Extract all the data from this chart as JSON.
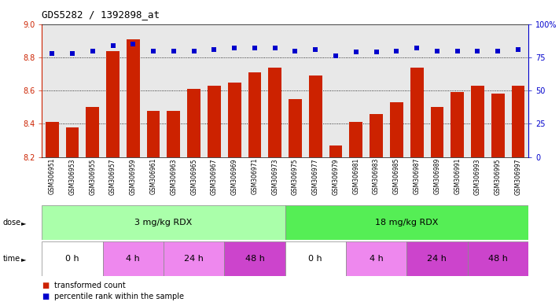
{
  "title": "GDS5282 / 1392898_at",
  "samples": [
    "GSM306951",
    "GSM306953",
    "GSM306955",
    "GSM306957",
    "GSM306959",
    "GSM306961",
    "GSM306963",
    "GSM306965",
    "GSM306967",
    "GSM306969",
    "GSM306971",
    "GSM306973",
    "GSM306975",
    "GSM306977",
    "GSM306979",
    "GSM306981",
    "GSM306983",
    "GSM306985",
    "GSM306987",
    "GSM306989",
    "GSM306991",
    "GSM306993",
    "GSM306995",
    "GSM306997"
  ],
  "bar_values": [
    8.41,
    8.38,
    8.5,
    8.84,
    8.91,
    8.48,
    8.48,
    8.61,
    8.63,
    8.65,
    8.71,
    8.74,
    8.55,
    8.69,
    8.27,
    8.41,
    8.46,
    8.53,
    8.74,
    8.5,
    8.59,
    8.63,
    8.58,
    8.63
  ],
  "percentile_values": [
    78,
    78,
    80,
    84,
    85,
    80,
    80,
    80,
    81,
    82,
    82,
    82,
    80,
    81,
    76,
    79,
    79,
    80,
    82,
    80,
    80,
    80,
    80,
    81
  ],
  "bar_color": "#cc2200",
  "dot_color": "#0000cc",
  "ylim_left": [
    8.2,
    9.0
  ],
  "ylim_right": [
    0,
    100
  ],
  "yticks_left": [
    8.2,
    8.4,
    8.6,
    8.8,
    9.0
  ],
  "yticks_right": [
    0,
    25,
    50,
    75,
    100
  ],
  "ytick_labels_right": [
    "0",
    "25",
    "50",
    "75",
    "100%"
  ],
  "grid_values": [
    8.4,
    8.6,
    8.8
  ],
  "dose_groups": [
    {
      "label": "3 mg/kg RDX",
      "start": 0,
      "end": 12,
      "color": "#aaffaa"
    },
    {
      "label": "18 mg/kg RDX",
      "start": 12,
      "end": 24,
      "color": "#55ee55"
    }
  ],
  "time_colors": [
    "#ffffff",
    "#ee88ee",
    "#ee88ee",
    "#cc44cc",
    "#ffffff",
    "#ee88ee",
    "#cc44cc",
    "#cc44cc"
  ],
  "time_groups": [
    {
      "label": "0 h",
      "start": 0,
      "end": 3
    },
    {
      "label": "4 h",
      "start": 3,
      "end": 6
    },
    {
      "label": "24 h",
      "start": 6,
      "end": 9
    },
    {
      "label": "48 h",
      "start": 9,
      "end": 12
    },
    {
      "label": "0 h",
      "start": 12,
      "end": 15
    },
    {
      "label": "4 h",
      "start": 15,
      "end": 18
    },
    {
      "label": "24 h",
      "start": 18,
      "end": 21
    },
    {
      "label": "48 h",
      "start": 21,
      "end": 24
    }
  ],
  "bg_color": "#ffffff",
  "plot_bg": "#e8e8e8",
  "dose_label": "dose",
  "time_label": "time"
}
